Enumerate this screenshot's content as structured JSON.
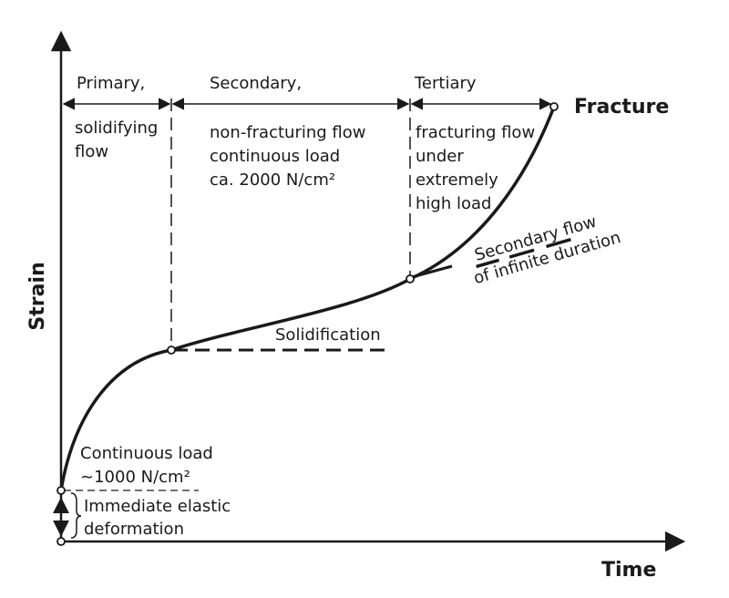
{
  "axes": {
    "x_label": "Time",
    "y_label": "Strain"
  },
  "phases": {
    "primary": {
      "title": "Primary,",
      "desc": [
        "solidifying",
        "flow"
      ]
    },
    "secondary": {
      "title": "Secondary,",
      "desc": [
        "non-fracturing flow",
        "continuous load",
        "ca. 2000 N/cm²"
      ]
    },
    "tertiary": {
      "title": "Tertiary",
      "desc": [
        "fracturing flow",
        "under",
        "extremely",
        "high load"
      ]
    }
  },
  "annotations": {
    "fracture": "Fracture",
    "secondary_flow": [
      "Secondary flow",
      "of infinite duration"
    ],
    "solidification": "Solidification",
    "continuous_load": [
      "Continuous load",
      "~1000 N/cm²"
    ],
    "elastic": [
      "Immediate elastic",
      "deformation"
    ]
  },
  "colors": {
    "ink": "#1a1a1a",
    "background": "#ffffff"
  }
}
